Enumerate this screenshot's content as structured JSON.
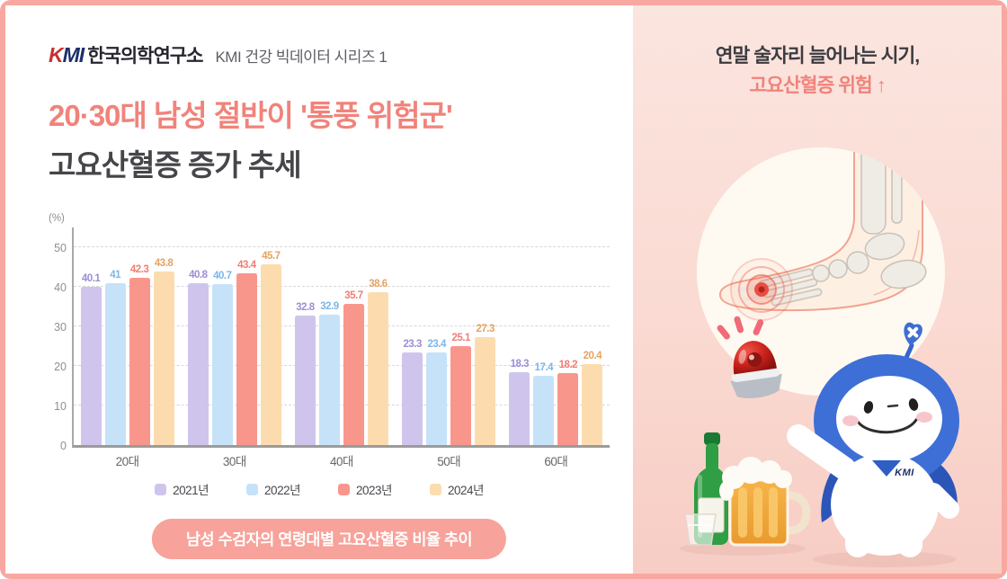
{
  "header": {
    "logo_kmi": "KMI",
    "logo_korean": "한국의학연구소",
    "series_label": "KMI 건강 빅데이터 시리즈 1"
  },
  "title": {
    "line1": "20·30대 남성 절반이 '통풍 위험군'",
    "line2": "고요산혈증 증가 추세"
  },
  "chart_data": {
    "type": "bar",
    "title": "남성 수검자의 연령대별 고요산혈증 비율 추이",
    "unit_label": "(%)",
    "categories": [
      "20대",
      "30대",
      "40대",
      "50대",
      "60대"
    ],
    "series": [
      {
        "name": "2021년",
        "color": "#cfc5ec",
        "label_color": "#9c8ed3",
        "values": [
          40.1,
          40.8,
          32.8,
          23.3,
          18.3
        ]
      },
      {
        "name": "2022년",
        "color": "#c6e2f9",
        "label_color": "#7db6e9",
        "values": [
          41,
          40.7,
          32.9,
          23.4,
          17.4
        ]
      },
      {
        "name": "2023년",
        "color": "#f9968c",
        "label_color": "#f07e74",
        "values": [
          42.3,
          43.4,
          35.7,
          25.1,
          18.2
        ]
      },
      {
        "name": "2024년",
        "color": "#fcdcae",
        "label_color": "#e5a362",
        "values": [
          43.8,
          45.7,
          38.6,
          27.3,
          20.4
        ]
      }
    ],
    "yticks": [
      0,
      10,
      20,
      30,
      40,
      50
    ],
    "ylim": [
      0,
      55
    ],
    "grid": "dashed-horizontal",
    "legend_position": "bottom"
  },
  "caption": "남성 수검자의 연령대별 고요산혈증 비율 추이",
  "right_panel": {
    "line1": "연말 술자리 늘어나는 시기,",
    "line2": "고요산혈증 위험",
    "arrow_up_icon": "↑",
    "mascot_badge": "KMI"
  },
  "colors": {
    "accent": "#f0837b",
    "frame_border": "#f8a8a0",
    "caption_pill_bg": "#f7a29a"
  }
}
